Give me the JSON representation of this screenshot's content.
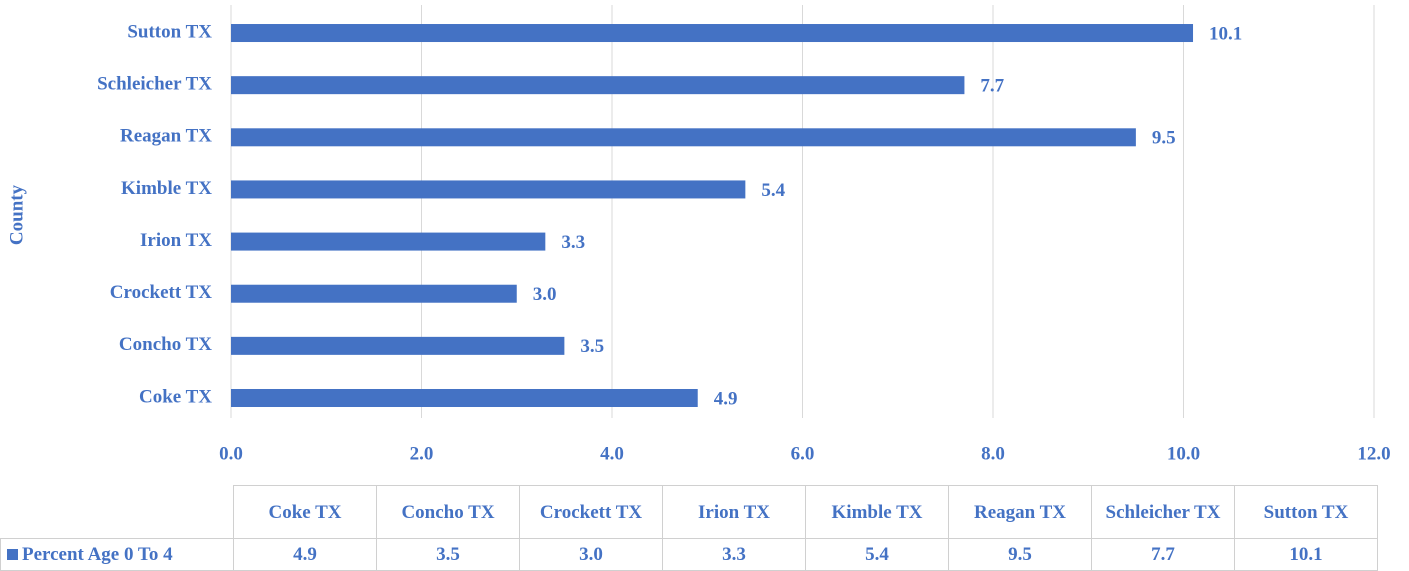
{
  "chart_data": {
    "type": "barh",
    "y_axis_label": "County",
    "categories": [
      "Coke TX",
      "Concho TX",
      "Crockett TX",
      "Irion TX",
      "Kimble TX",
      "Reagan TX",
      "Schleicher TX",
      "Sutton TX"
    ],
    "series": [
      {
        "name": "Percent Age 0 To 4",
        "color": "#4472c4",
        "values": [
          4.9,
          3.5,
          3.0,
          3.3,
          5.4,
          9.5,
          7.7,
          10.1
        ],
        "value_labels": [
          "4.9",
          "3.5",
          "3.0",
          "3.3",
          "5.4",
          "9.5",
          "7.7",
          "10.1"
        ]
      }
    ],
    "xlim": [
      0,
      12
    ],
    "xticks": [
      {
        "value": 0,
        "label": "0.0"
      },
      {
        "value": 2,
        "label": "2.0"
      },
      {
        "value": 4,
        "label": "4.0"
      },
      {
        "value": 6,
        "label": "6.0"
      },
      {
        "value": 8,
        "label": "8.0"
      },
      {
        "value": 10,
        "label": "10.0"
      },
      {
        "value": 12,
        "label": "12.0"
      }
    ],
    "grid": true,
    "data_table": true
  }
}
